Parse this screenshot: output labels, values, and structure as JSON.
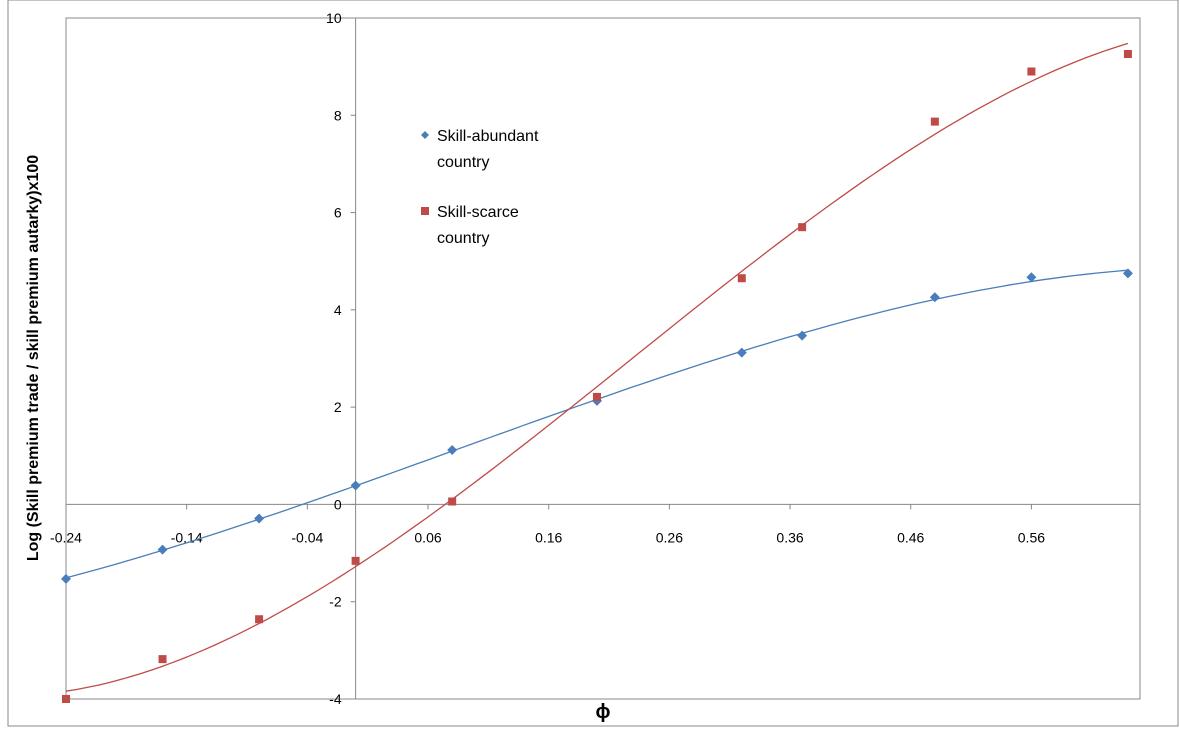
{
  "chart_data": {
    "type": "scatter",
    "y_label": "Log (Skill premium trade / skill premium autarky)x100",
    "x_label": "ϕ",
    "xlim": [
      -0.24,
      0.65
    ],
    "xticks": [
      -0.24,
      -0.14,
      -0.04,
      0.06,
      0.16,
      0.26,
      0.36,
      0.46,
      0.56
    ],
    "ylim": [
      -4,
      10
    ],
    "yticks": [
      -4,
      -2,
      0,
      2,
      4,
      6,
      8,
      10
    ],
    "trendline": "polynomial",
    "series": [
      {
        "name": "Skill-abundant country",
        "color": "#4a7ebb",
        "marker": "diamond",
        "x": [
          -0.24,
          -0.16,
          -0.08,
          0,
          0.08,
          0.2,
          0.32,
          0.37,
          0.48,
          0.56,
          0.64
        ],
        "values": [
          -1.53,
          -0.93,
          -0.29,
          0.39,
          1.12,
          2.13,
          3.12,
          3.47,
          4.26,
          4.67,
          4.75
        ]
      },
      {
        "name": "Skill-scarce country",
        "color": "#be4b48",
        "marker": "square",
        "x": [
          -0.24,
          -0.16,
          -0.08,
          0,
          0.08,
          0.2,
          0.32,
          0.37,
          0.48,
          0.56,
          0.64
        ],
        "values": [
          -4.0,
          -3.18,
          -2.36,
          -1.16,
          0.06,
          2.21,
          4.65,
          5.7,
          7.87,
          8.9,
          9.26
        ]
      }
    ]
  }
}
